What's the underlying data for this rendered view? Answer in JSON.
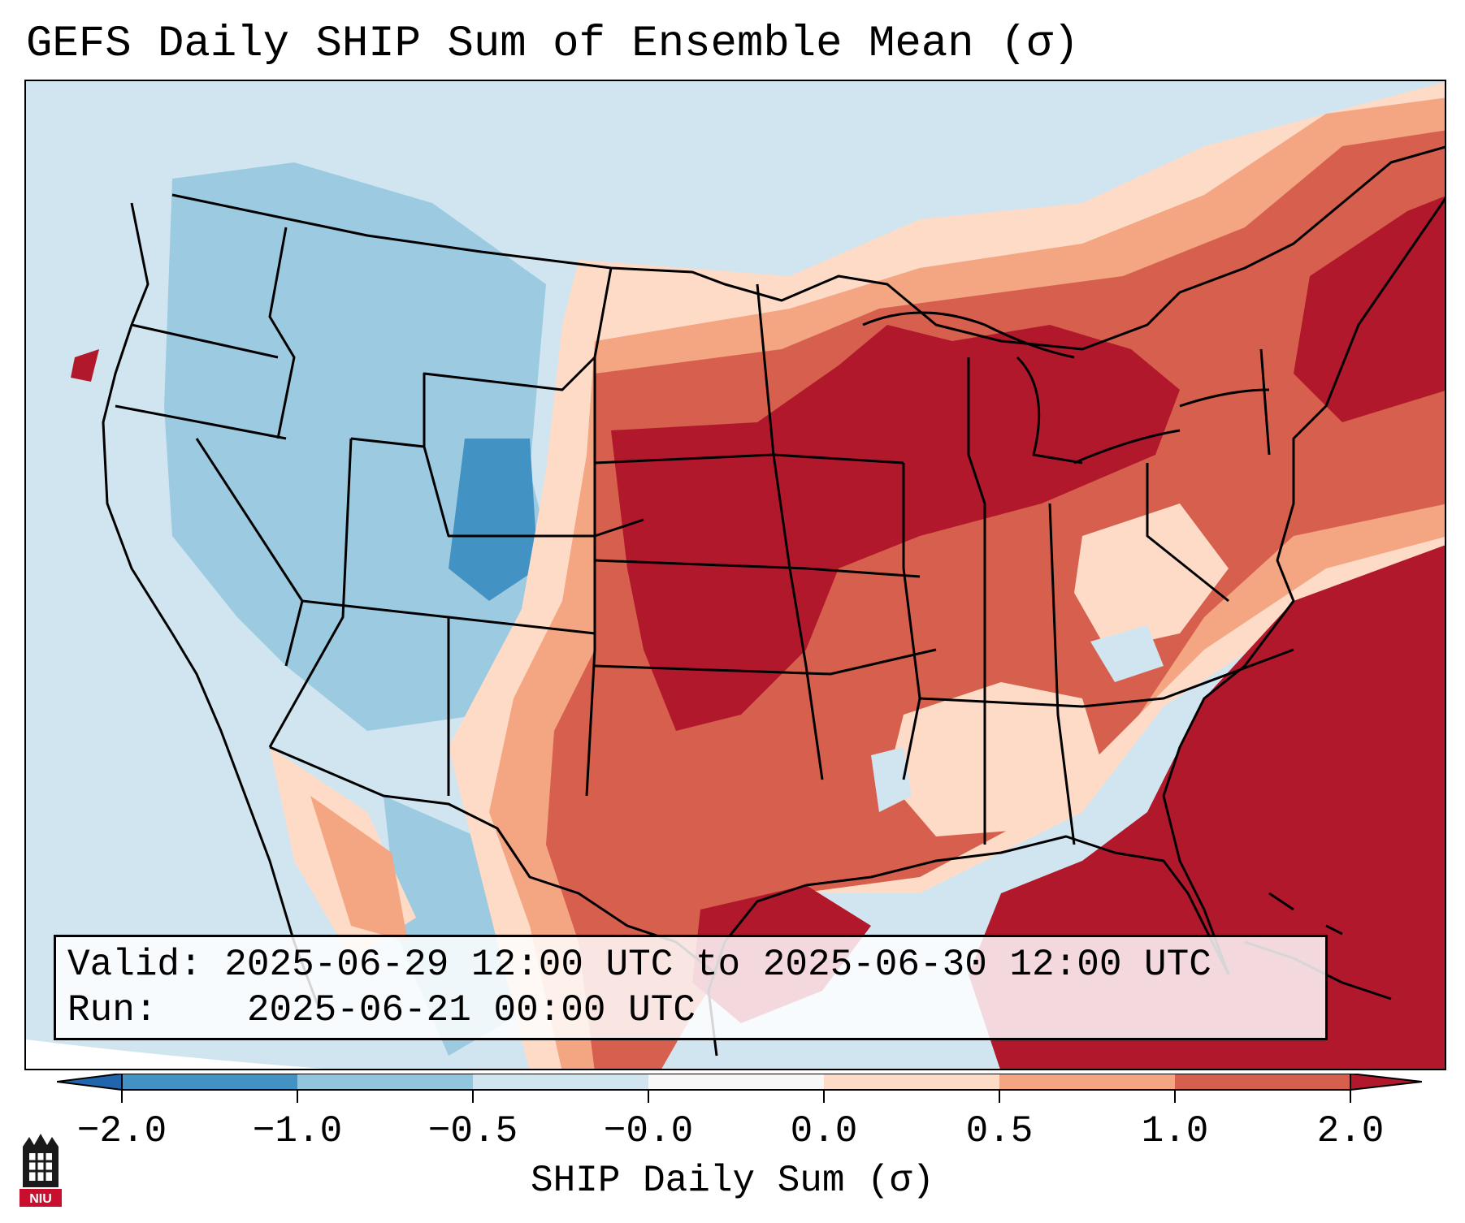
{
  "title": "GEFS Daily SHIP Sum of Ensemble Mean (σ)",
  "info": {
    "valid_label": "Valid:",
    "valid_value": "2025-06-29 12:00 UTC to 2025-06-30 12:00 UTC",
    "run_label": "Run:",
    "run_value": "2025-06-21 00:00 UTC"
  },
  "colorbar": {
    "label": "SHIP Daily Sum (σ)",
    "ticks": [
      "−2.0",
      "−1.0",
      "−0.5",
      "−0.0",
      "0.0",
      "0.5",
      "1.0",
      "2.0"
    ],
    "colors": [
      "#4392c4",
      "#92c5de",
      "#d1e5f0",
      "#f7f7f7",
      "#fddbc7",
      "#f4a582",
      "#d6604d",
      "#b2182b"
    ]
  },
  "logo": {
    "text": "NIU"
  },
  "map": {
    "region": "Continental United States",
    "colors": {
      "ocean": "#c9dfee",
      "outside": "#ffffff",
      "border": "#000000"
    }
  }
}
